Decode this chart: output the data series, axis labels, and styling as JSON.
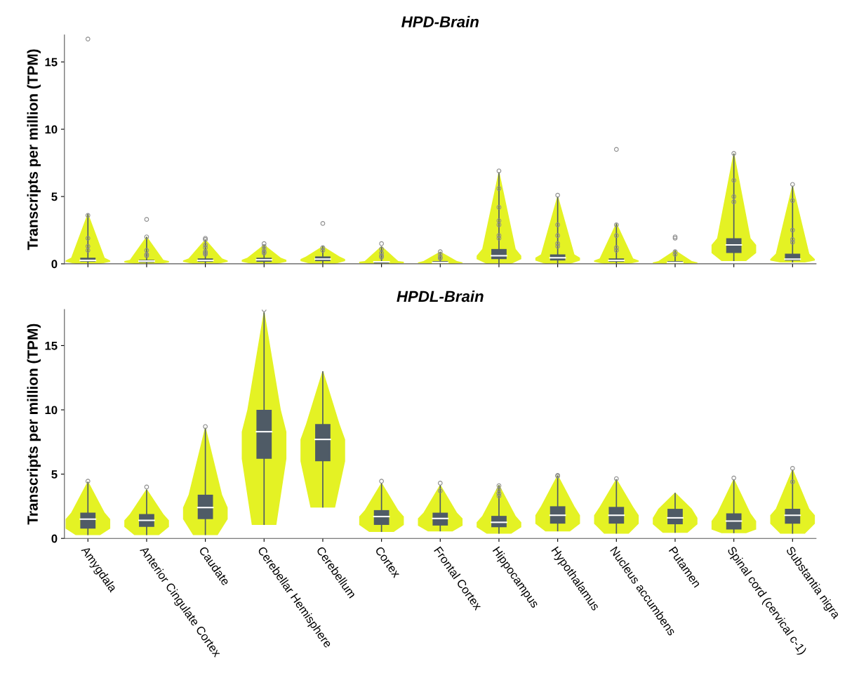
{
  "chart_data": [
    {
      "type": "box",
      "title": "HPD-Brain",
      "ylabel": "Transcripts per million (TPM)",
      "tick_labels": "y",
      "color": "#4f5b66",
      "ylim": [
        0,
        17
      ],
      "yticks": [
        0,
        5,
        10,
        15
      ],
      "grid": false,
      "legend": false,
      "categories": [
        null,
        null,
        null,
        null,
        null,
        null,
        null,
        null,
        null,
        null,
        null,
        null,
        null
      ],
      "boxes": [
        {
          "low": 0,
          "q1": 0.15,
          "median": 0.25,
          "q3": 0.45,
          "high": 3.7,
          "outliers": [
            16.7,
            3.6,
            1.9,
            1.3,
            1.0
          ]
        },
        {
          "low": 0,
          "q1": 0.1,
          "median": 0.2,
          "q3": 0.3,
          "high": 2.0,
          "outliers": [
            3.3,
            2.0,
            1.0,
            0.7,
            0.6
          ]
        },
        {
          "low": 0,
          "q1": 0.15,
          "median": 0.25,
          "q3": 0.4,
          "high": 1.8,
          "outliers": [
            1.9,
            1.8,
            1.4,
            1.2,
            0.9,
            0.8,
            0.7
          ]
        },
        {
          "low": 0,
          "q1": 0.15,
          "median": 0.3,
          "q3": 0.45,
          "high": 1.4,
          "outliers": [
            1.5,
            1.3,
            1.1,
            0.9,
            0.8
          ]
        },
        {
          "low": 0,
          "q1": 0.2,
          "median": 0.35,
          "q3": 0.55,
          "high": 1.3,
          "outliers": [
            3.0,
            1.2,
            1.0
          ]
        },
        {
          "low": 0,
          "q1": 0.05,
          "median": 0.15,
          "q3": 0.2,
          "high": 1.3,
          "outliers": [
            1.5,
            1.1,
            0.8,
            0.6,
            0.5
          ]
        },
        {
          "low": 0,
          "q1": 0.05,
          "median": 0.1,
          "q3": 0.2,
          "high": 0.9,
          "outliers": [
            0.9,
            0.7,
            0.5,
            0.4
          ]
        },
        {
          "low": 0,
          "q1": 0.35,
          "median": 0.6,
          "q3": 1.1,
          "high": 6.8,
          "outliers": [
            6.9,
            5.6,
            4.2,
            3.2,
            2.9,
            2.1,
            1.9
          ]
        },
        {
          "low": 0,
          "q1": 0.25,
          "median": 0.45,
          "q3": 0.7,
          "high": 5.0,
          "outliers": [
            5.1,
            2.9,
            2.1,
            1.5,
            1.3
          ]
        },
        {
          "low": 0,
          "q1": 0.15,
          "median": 0.25,
          "q3": 0.4,
          "high": 3.0,
          "outliers": [
            8.5,
            2.9,
            2.1,
            1.2,
            1.0
          ]
        },
        {
          "low": 0,
          "q1": 0.05,
          "median": 0.1,
          "q3": 0.2,
          "high": 1.0,
          "outliers": [
            2.0,
            1.9,
            0.9,
            0.7
          ]
        },
        {
          "low": 0.2,
          "q1": 0.8,
          "median": 1.4,
          "q3": 1.9,
          "high": 8.2,
          "outliers": [
            8.2,
            6.2,
            5.0,
            4.6
          ]
        },
        {
          "low": 0.1,
          "q1": 0.25,
          "median": 0.35,
          "q3": 0.75,
          "high": 5.8,
          "outliers": [
            5.9,
            4.7,
            2.5,
            1.8,
            1.6
          ]
        }
      ]
    },
    {
      "type": "box",
      "title": "HPDL-Brain",
      "ylabel": "Transcripts per million (TPM)",
      "color": "#4f5b66",
      "ylim": [
        0,
        17.8
      ],
      "yticks": [
        0,
        5,
        10,
        15
      ],
      "grid": false,
      "legend": false,
      "categories": [
        "Amygdala",
        "Anterior Cingulate Cortex",
        "Caudate",
        "Cerebellar Hemisphere",
        "Cerebellum",
        "Cortex",
        "Frontal Cortex",
        "Hippocampus",
        "Hypothalamus",
        "Nucleus accumbens",
        "Putamen",
        "Spinal cord (cervical c-1)",
        "Substantia nigra"
      ],
      "boxes": [
        {
          "low": 0.26,
          "q1": 0.76,
          "median": 1.5,
          "q3": 2.0,
          "high": 4.4,
          "outliers": [
            4.45
          ]
        },
        {
          "low": 0.26,
          "q1": 0.9,
          "median": 1.4,
          "q3": 1.9,
          "high": 3.8,
          "outliers": [
            4.0
          ]
        },
        {
          "low": 0.26,
          "q1": 1.5,
          "median": 2.4,
          "q3": 3.4,
          "high": 8.6,
          "outliers": [
            8.7
          ]
        },
        {
          "low": 1.05,
          "q1": 6.2,
          "median": 8.3,
          "q3": 10.0,
          "high": 17.6,
          "outliers": [
            17.8
          ]
        },
        {
          "low": 2.4,
          "q1": 6.0,
          "median": 7.7,
          "q3": 8.9,
          "high": 13.0
        },
        {
          "low": 0.5,
          "q1": 1.05,
          "median": 1.7,
          "q3": 2.2,
          "high": 4.3,
          "outliers": [
            4.45
          ]
        },
        {
          "low": 0.55,
          "q1": 1.0,
          "median": 1.55,
          "q3": 2.0,
          "high": 4.15,
          "outliers": [
            4.3,
            3.7
          ]
        },
        {
          "low": 0.37,
          "q1": 0.87,
          "median": 1.25,
          "q3": 1.75,
          "high": 4.15,
          "outliers": [
            4.1,
            3.8,
            3.5,
            3.5,
            3.3
          ]
        },
        {
          "low": 0.55,
          "q1": 1.15,
          "median": 1.8,
          "q3": 2.5,
          "high": 4.9,
          "outliers": [
            4.9,
            4.85
          ]
        },
        {
          "low": 0.37,
          "q1": 1.15,
          "median": 1.8,
          "q3": 2.45,
          "high": 4.6,
          "outliers": [
            4.65
          ]
        },
        {
          "low": 0.43,
          "q1": 1.1,
          "median": 1.6,
          "q3": 2.3,
          "high": 3.55
        },
        {
          "low": 0.4,
          "q1": 0.7,
          "median": 1.35,
          "q3": 1.95,
          "high": 4.6,
          "outliers": [
            4.7
          ]
        },
        {
          "low": 0.37,
          "q1": 1.15,
          "median": 1.8,
          "q3": 2.3,
          "high": 5.35,
          "outliers": [
            5.45,
            4.4
          ]
        }
      ]
    }
  ]
}
